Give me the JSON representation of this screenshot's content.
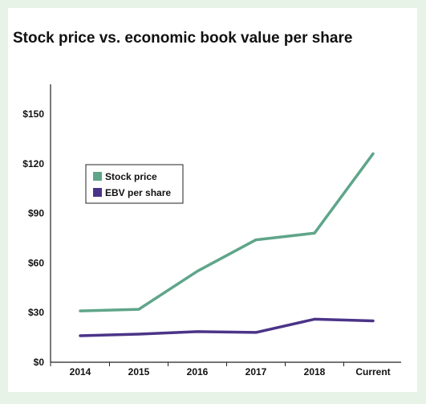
{
  "colors": {
    "stock": "#5fa58a",
    "ebv": "#4b3488",
    "page_bg": "#e8f3e7"
  },
  "chart_data": {
    "type": "line",
    "title": "Stock price vs. economic book value per share",
    "xlabel": "",
    "ylabel": "",
    "categories": [
      "2014",
      "2015",
      "2016",
      "2017",
      "2018",
      "Current"
    ],
    "yticks": [
      "$0",
      "$30",
      "$60",
      "$90",
      "$120",
      "$150"
    ],
    "ylim": [
      0,
      150
    ],
    "grid": false,
    "legend_position": "upper-left",
    "series": [
      {
        "name": "Stock price",
        "values": [
          31,
          32,
          55,
          74,
          78,
          126
        ],
        "color": "#5fa58a"
      },
      {
        "name": "EBV per share",
        "values": [
          16,
          17,
          18.5,
          18,
          26,
          25
        ],
        "color": "#4b3488"
      }
    ]
  }
}
